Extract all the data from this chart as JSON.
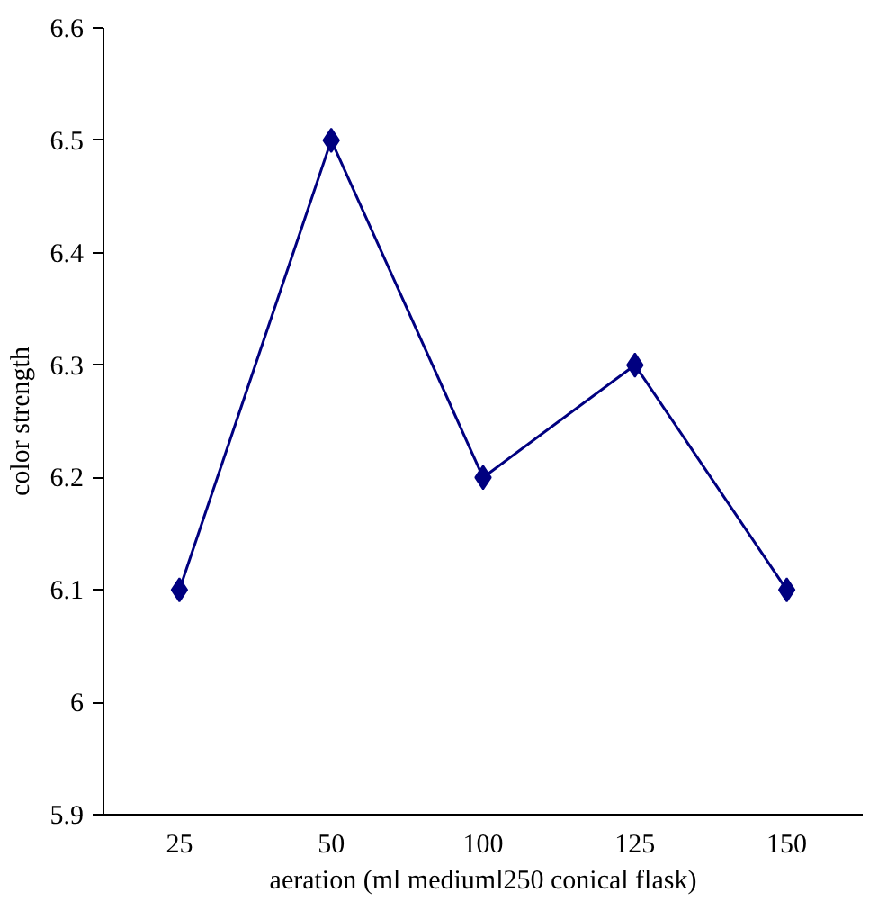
{
  "chart_data": {
    "type": "line",
    "xlabel": "aeration (ml mediuml250 conical flask)",
    "ylabel": "color strength",
    "categories": [
      "25",
      "50",
      "100",
      "125",
      "150"
    ],
    "series": [
      {
        "color": "#000080",
        "values": [
          6.1,
          6.5,
          6.2,
          6.3,
          6.1
        ]
      }
    ],
    "ylim": [
      5.9,
      6.6
    ],
    "yticks": [
      5.9,
      6,
      6.1,
      6.2,
      6.3,
      6.4,
      6.5,
      6.6
    ],
    "marker": "diamond",
    "line_style": "solid",
    "grid": false
  }
}
